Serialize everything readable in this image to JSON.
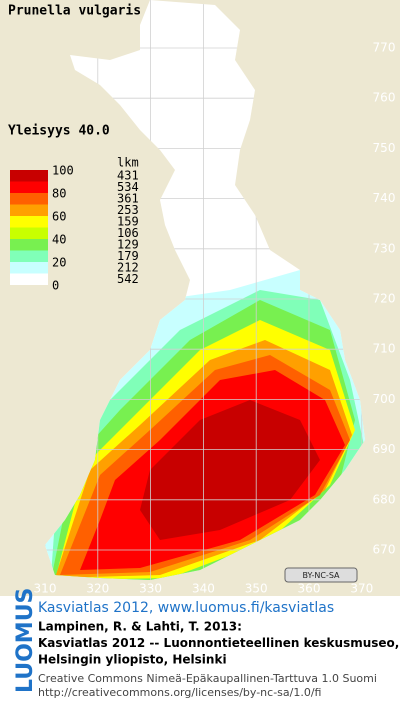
{
  "title": "Prunella vulgaris",
  "frequency": "Yleisyys 40.0",
  "legend": {
    "count_header": "lkm",
    "scale_labels": [
      "100",
      "80",
      "60",
      "40",
      "20",
      "0"
    ],
    "classes": [
      {
        "color": "#c80000",
        "count": "431"
      },
      {
        "color": "#ff0000",
        "count": "534"
      },
      {
        "color": "#ff6000",
        "count": "361"
      },
      {
        "color": "#ffa000",
        "count": "253"
      },
      {
        "color": "#ffff00",
        "count": "159"
      },
      {
        "color": "#c8ff00",
        "count": "106"
      },
      {
        "color": "#78f050",
        "count": "129"
      },
      {
        "color": "#80ffb8",
        "count": "179"
      },
      {
        "color": "#c8ffff",
        "count": "212"
      },
      {
        "color": "#ffffff",
        "count": "542"
      }
    ]
  },
  "northing_labels": [
    "770",
    "760",
    "750",
    "740",
    "730",
    "720",
    "710",
    "700",
    "690",
    "680",
    "670"
  ],
  "easting_labels": [
    "310",
    "320",
    "330",
    "340",
    "350",
    "360",
    "370"
  ],
  "license_badge": "BY-NC-SA",
  "footer": {
    "logo": "LUOMUS",
    "link": "Kasviatlas 2012, www.luomus.fi/kasviatlas",
    "citation": [
      "Lampinen, R. & Lahti, T. 2013:",
      "Kasviatlas 2012 -- Luonnontieteellinen keskusmuseo,",
      "Helsingin yliopisto, Helsinki"
    ],
    "license": [
      "Creative Commons Nimeä-Epäkaupallinen-Tarttuva 1.0 Suomi",
      "http://creativecommons.org/licenses/by-nc-sa/1.0/fi"
    ]
  }
}
